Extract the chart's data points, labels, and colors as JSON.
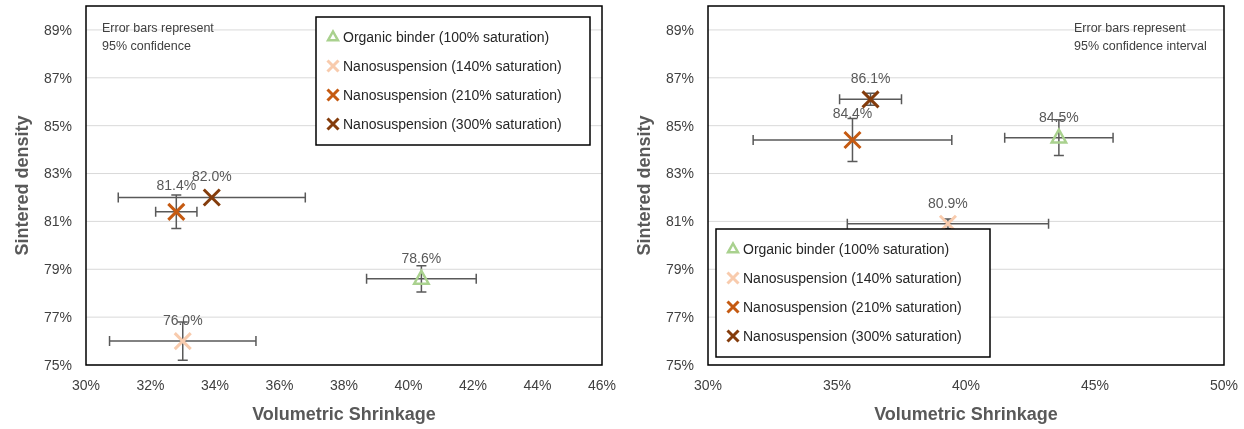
{
  "chart_data": [
    {
      "type": "scatter",
      "xlabel": "Volumetric Shrinkage",
      "ylabel": "Sintered density",
      "annotations": [
        "Error bars represent\n95% confidence"
      ],
      "xlim": [
        30,
        46
      ],
      "ylim": [
        75,
        90
      ],
      "xticks": [
        {
          "value": 30,
          "label": "30%"
        },
        {
          "value": 32,
          "label": "32%"
        },
        {
          "value": 34,
          "label": "34%"
        },
        {
          "value": 36,
          "label": "36%"
        },
        {
          "value": 38,
          "label": "38%"
        },
        {
          "value": 40,
          "label": "40%"
        },
        {
          "value": 42,
          "label": "42%"
        },
        {
          "value": 44,
          "label": "44%"
        },
        {
          "value": 46,
          "label": "46%"
        }
      ],
      "yticks": [
        {
          "value": 75,
          "label": "75%"
        },
        {
          "value": 77,
          "label": "77%"
        },
        {
          "value": 79,
          "label": "79%"
        },
        {
          "value": 81,
          "label": "81%"
        },
        {
          "value": 83,
          "label": "83%"
        },
        {
          "value": 85,
          "label": "85%"
        },
        {
          "value": 87,
          "label": "87%"
        },
        {
          "value": 89,
          "label": "89%"
        }
      ],
      "grid": "y",
      "legend": "top right",
      "series": [
        {
          "name": "Organic binder (100% saturation)",
          "color": "#a9d18e",
          "marker": "triangle",
          "x": [
            40.4
          ],
          "values": [
            78.6
          ],
          "value_labels": [
            "78.6%"
          ],
          "errors": [
            0.55
          ],
          "xerrors": [
            1.7
          ]
        },
        {
          "name": "Nanosuspension (140% saturation)",
          "color": "#f8cbad",
          "marker": "cross",
          "x": [
            33.0
          ],
          "values": [
            76.0
          ],
          "value_labels": [
            "76.0%"
          ],
          "errors": [
            0.8
          ],
          "xerrors": [
            2.27
          ]
        },
        {
          "name": "Nanosuspension (210% saturation)",
          "color": "#c55a11",
          "marker": "cross",
          "x": [
            32.8
          ],
          "values": [
            81.4
          ],
          "value_labels": [
            "81.4%"
          ],
          "errors": [
            0.7
          ],
          "xerrors": [
            0.64
          ]
        },
        {
          "name": "Nanosuspension (300% saturation)",
          "color": "#843c0c",
          "marker": "cross",
          "x": [
            33.9
          ],
          "values": [
            82.0
          ],
          "value_labels": [
            "82.0%"
          ],
          "errors": [
            null
          ],
          "xerrors": [
            2.9
          ]
        }
      ]
    },
    {
      "type": "scatter",
      "xlabel": "Volumetric Shrinkage",
      "ylabel": "Sintered density",
      "annotations": [
        "Error bars represent\n95% confidence interval"
      ],
      "xlim": [
        30,
        50
      ],
      "ylim": [
        75,
        90
      ],
      "xticks": [
        {
          "value": 30,
          "label": "30%"
        },
        {
          "value": 35,
          "label": "35%"
        },
        {
          "value": 40,
          "label": "40%"
        },
        {
          "value": 45,
          "label": "45%"
        },
        {
          "value": 50,
          "label": "50%"
        }
      ],
      "yticks": [
        {
          "value": 75,
          "label": "75%"
        },
        {
          "value": 77,
          "label": "77%"
        },
        {
          "value": 79,
          "label": "79%"
        },
        {
          "value": 81,
          "label": "81%"
        },
        {
          "value": 83,
          "label": "83%"
        },
        {
          "value": 85,
          "label": "85%"
        },
        {
          "value": 87,
          "label": "87%"
        },
        {
          "value": 89,
          "label": "89%"
        }
      ],
      "grid": "y",
      "legend": "bottom left",
      "series": [
        {
          "name": "Organic binder (100% saturation)",
          "color": "#a9d18e",
          "marker": "triangle",
          "x": [
            43.6
          ],
          "values": [
            84.5
          ],
          "value_labels": [
            "84.5%"
          ],
          "errors": [
            0.75
          ],
          "xerrors": [
            2.1
          ]
        },
        {
          "name": "Nanosuspension (140% saturation)",
          "color": "#f8cbad",
          "marker": "cross",
          "x": [
            39.3
          ],
          "values": [
            80.9
          ],
          "value_labels": [
            "80.9%"
          ],
          "errors": [
            0.2
          ],
          "xerrors": [
            3.9
          ]
        },
        {
          "name": "Nanosuspension (210% saturation)",
          "color": "#c55a11",
          "marker": "cross",
          "x": [
            35.6
          ],
          "values": [
            84.4
          ],
          "value_labels": [
            "84.4%"
          ],
          "errors": [
            0.9
          ],
          "xerrors": [
            3.85
          ]
        },
        {
          "name": "Nanosuspension (300% saturation)",
          "color": "#843c0c",
          "marker": "cross",
          "x": [
            36.3
          ],
          "values": [
            86.1
          ],
          "value_labels": [
            "86.1%"
          ],
          "errors": [
            0.25
          ],
          "xerrors": [
            1.2
          ]
        }
      ]
    }
  ]
}
